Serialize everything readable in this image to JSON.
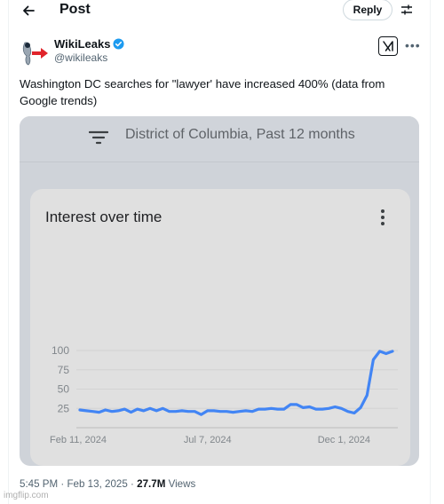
{
  "header": {
    "title": "Post",
    "reply_label": "Reply"
  },
  "post": {
    "author_name": "WikiLeaks",
    "author_handle": "@wikileaks",
    "text": "Washington DC searches for \"lawyer' have increased 400% (data from Google trends)",
    "timestamp": "5:45 PM · Feb 13, 2025 · ",
    "views_count": "27.7M",
    "views_label": " Views"
  },
  "media": {
    "filter_text": "District of Columbia, Past 12 months",
    "chart_heading": "Interest over time"
  },
  "chart_data": {
    "type": "line",
    "title": "Interest over time",
    "xlabel": "",
    "ylabel": "",
    "ylim": [
      0,
      100
    ],
    "yticks": [
      "100",
      "75",
      "50",
      "25"
    ],
    "ytick_values": [
      100,
      75,
      50,
      25
    ],
    "xtick_labels": [
      "Feb 11, 2024",
      "Jul 7, 2024",
      "Dec 1, 2024"
    ],
    "xtick_index": [
      0,
      21,
      42
    ],
    "series_color": "#4285f4",
    "values": [
      23,
      22,
      21,
      20,
      23,
      21,
      22,
      24,
      20,
      24,
      22,
      25,
      22,
      25,
      21,
      21,
      22,
      21,
      21,
      17,
      22,
      22,
      21,
      21,
      20,
      21,
      22,
      21,
      24,
      24,
      25,
      24,
      24,
      30,
      30,
      26,
      27,
      24,
      24,
      25,
      27,
      25,
      21,
      19,
      26,
      42,
      88,
      99,
      96,
      99
    ]
  },
  "colors": {
    "accent": "#1d9bf0",
    "wikileaks_red": "#e0242b"
  },
  "watermark": "imgflip.com"
}
